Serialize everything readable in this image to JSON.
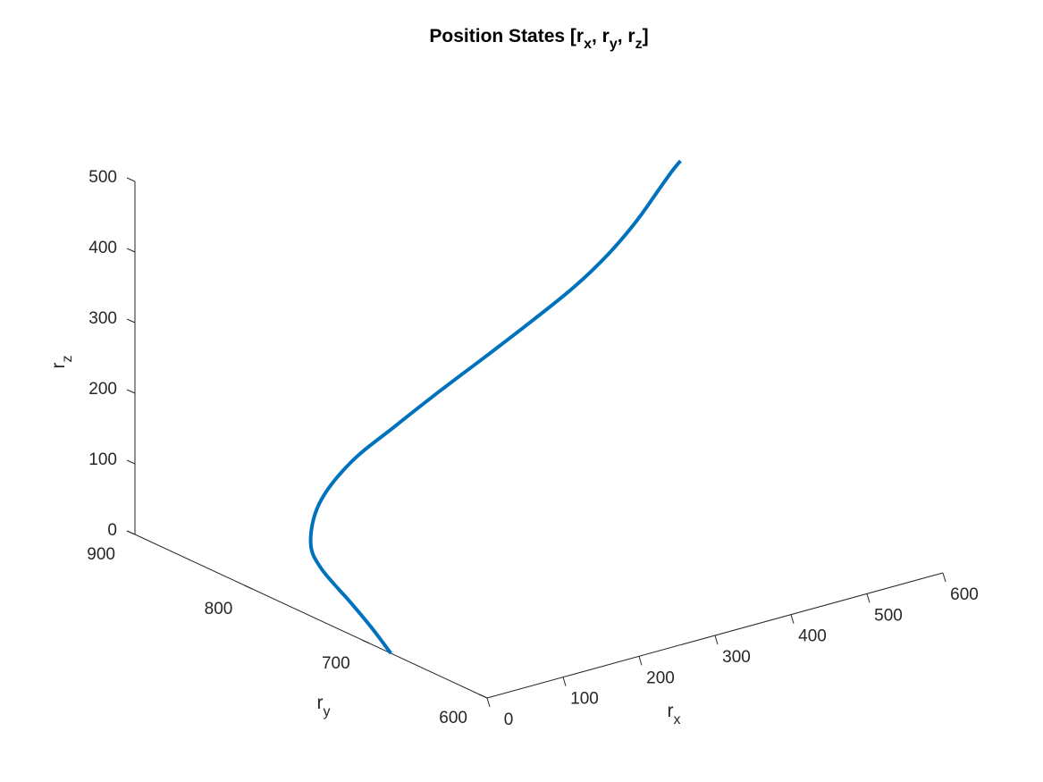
{
  "chart_data": {
    "type": "line",
    "title": "Position States [r_x, r_y, r_z]",
    "xlabel": "r_x",
    "ylabel": "r_y",
    "zlabel": "r_z",
    "xlim": [
      0,
      600
    ],
    "ylim": [
      600,
      900
    ],
    "zlim": [
      0,
      500
    ],
    "xticks": [
      "0",
      "100",
      "200",
      "300",
      "400",
      "500",
      "600"
    ],
    "yticks": [
      "600",
      "700",
      "800",
      "900"
    ],
    "zticks": [
      "0",
      "100",
      "200",
      "300",
      "400",
      "500"
    ],
    "grid": false,
    "series": [
      {
        "color": "#0072BD",
        "x": [
          0,
          30,
          55,
          75,
          100,
          130,
          180,
          240,
          300,
          360,
          420,
          470,
          510,
          540,
          560,
          572,
          576
        ],
        "y": [
          682,
          718,
          752,
          790,
          815,
          827,
          833,
          834,
          834,
          833,
          832,
          829,
          826,
          822,
          817,
          812,
          808
        ],
        "z": [
          0,
          0,
          2,
          15,
          25,
          62,
          100,
          133,
          166,
          199,
          233,
          268,
          305,
          345,
          385,
          415,
          430
        ]
      }
    ]
  },
  "colors": {
    "line": "#0072BD",
    "axes": "#262626"
  }
}
